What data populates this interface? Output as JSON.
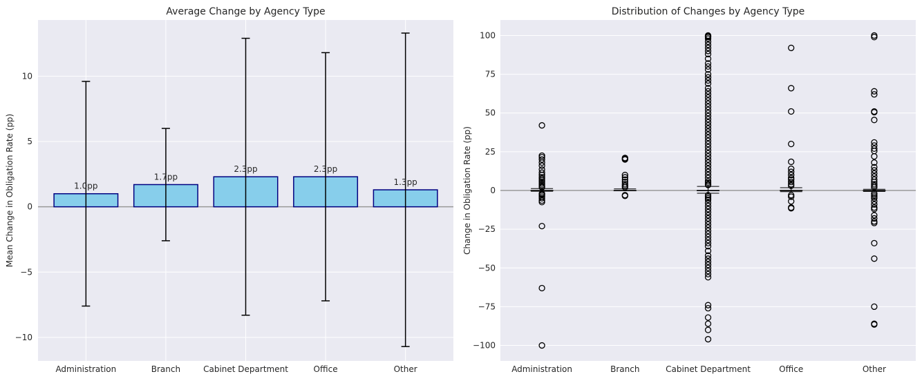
{
  "chart_data": [
    {
      "type": "bar",
      "title": "Average Change by Agency Type",
      "xlabel": "",
      "ylabel": "Mean Change in Obligation Rate (pp)",
      "categories": [
        "Administration",
        "Branch",
        "Cabinet Department",
        "Office",
        "Other"
      ],
      "values": [
        1.0,
        1.7,
        2.3,
        2.3,
        1.3
      ],
      "error_low": [
        -7.6,
        -2.6,
        -8.3,
        -7.2,
        -10.7
      ],
      "error_high": [
        9.6,
        6.0,
        12.9,
        11.8,
        13.3
      ],
      "data_labels": [
        "1.0pp",
        "1.7pp",
        "2.3pp",
        "2.3pp",
        "1.3pp"
      ],
      "ylim": [
        -11.8,
        14.3
      ],
      "yticks": [
        10,
        5,
        0,
        -5,
        -10
      ],
      "ytick_labels": [
        "10",
        "5",
        "0",
        "−5",
        "−10"
      ],
      "reference_line_y": 0,
      "grid": true,
      "colors": {
        "bar_fill": "#87ceeb",
        "bar_edge": "#000080",
        "errorbar": "#000000",
        "refline": "#999999",
        "background": "#eaeaf2",
        "grid": "#ffffff"
      }
    },
    {
      "type": "box",
      "title": "Distribution of Changes by Agency Type",
      "xlabel": "",
      "ylabel": "Change in Obligation Rate (pp)",
      "categories": [
        "Administration",
        "Branch",
        "Cabinet Department",
        "Office",
        "Other"
      ],
      "boxes": [
        {
          "q1": 0,
          "median": 0,
          "q3": 0,
          "whisker_low": -0.5,
          "whisker_high": 1.2,
          "outliers": [
            42,
            22.5,
            21.5,
            20,
            18,
            16,
            13.5,
            11.5,
            10,
            8.5,
            7.5,
            6.5,
            5.5,
            4.5,
            3.5,
            2.5,
            2,
            -2,
            -2.5,
            -3,
            -4,
            -5,
            -6.5,
            -7.5,
            -23,
            -63,
            -100
          ]
        },
        {
          "q1": 0,
          "median": 0,
          "q3": 0,
          "whisker_low": -0.2,
          "whisker_high": 1.0,
          "outliers": [
            21,
            20.5,
            20,
            10,
            8.5,
            7,
            5.5,
            4,
            3,
            2,
            -3,
            -3.5
          ]
        },
        {
          "q1": 0,
          "median": 0,
          "q3": 0,
          "whisker_low": -1.8,
          "whisker_high": 2.6,
          "outliers": [
            100,
            99.5,
            99,
            98,
            96,
            94,
            92,
            90,
            88,
            85,
            82,
            80,
            78,
            75,
            73,
            71,
            69,
            66,
            64,
            62,
            60,
            58,
            56,
            54,
            52,
            50,
            48,
            46,
            44,
            42,
            40,
            38,
            36,
            34,
            32,
            30,
            28,
            26,
            24,
            22,
            20,
            18,
            16,
            14,
            12,
            10,
            8,
            6,
            5,
            4,
            3.5,
            -3,
            -4,
            -5,
            -6,
            -8,
            -10,
            -12,
            -14,
            -16,
            -18,
            -20,
            -22,
            -24,
            -26,
            -28,
            -30,
            -32,
            -34,
            -36,
            -39,
            -42,
            -44,
            -46,
            -48,
            -50,
            -52,
            -54,
            -56,
            -74,
            -76,
            -82,
            -86,
            -90,
            -96
          ]
        },
        {
          "q1": 0,
          "median": 0,
          "q3": 0,
          "whisker_low": -0.8,
          "whisker_high": 1.8,
          "outliers": [
            92,
            66,
            51,
            30,
            18.5,
            14,
            12,
            10,
            8,
            7,
            5.5,
            4,
            3,
            -3,
            -4,
            -7,
            -11,
            -11.5
          ]
        },
        {
          "q1": 0,
          "median": 0,
          "q3": 0,
          "whisker_low": -0.6,
          "whisker_high": 0.8,
          "outliers": [
            100,
            99,
            64,
            62,
            51,
            50.5,
            45.5,
            31,
            29,
            27,
            25.5,
            22,
            18,
            15,
            13,
            11,
            9,
            7,
            5.5,
            4,
            3,
            2,
            -2,
            -3,
            -4,
            -5,
            -7,
            -9,
            -11,
            -12,
            -16,
            -18,
            -20,
            -21,
            -34,
            -44,
            -75,
            -86,
            -86.5
          ]
        }
      ],
      "ylim": [
        -110,
        110
      ],
      "yticks": [
        100,
        75,
        50,
        25,
        0,
        -25,
        -50,
        -75,
        -100
      ],
      "ytick_labels": [
        "100",
        "75",
        "50",
        "25",
        "0",
        "−25",
        "−50",
        "−75",
        "−100"
      ],
      "reference_line_y": 0,
      "grid": true,
      "colors": {
        "marker_edge": "#000000",
        "refline": "#999999",
        "background": "#eaeaf2",
        "grid": "#ffffff"
      }
    }
  ]
}
